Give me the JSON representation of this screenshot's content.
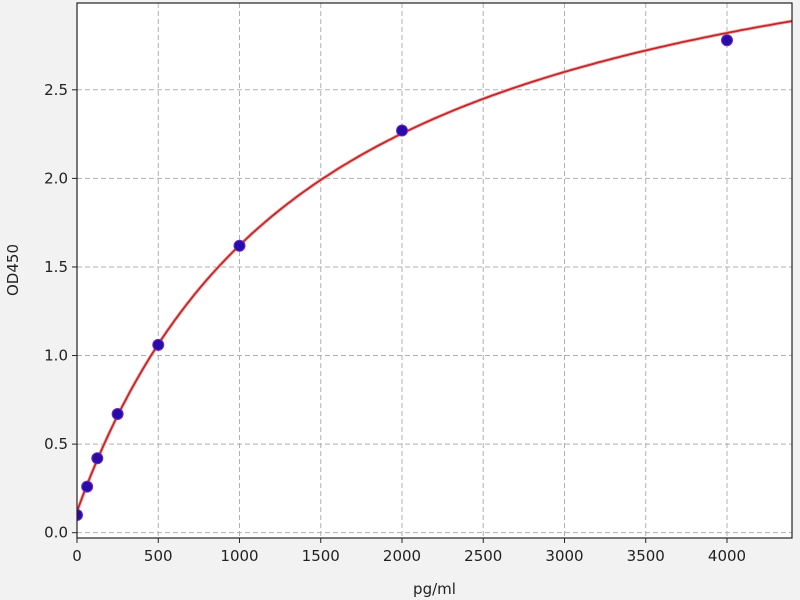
{
  "chart_data": {
    "type": "scatter",
    "title": "",
    "xlabel": "pg/ml",
    "ylabel": "OD450",
    "xlim": [
      0,
      4400
    ],
    "ylim": [
      -0.03,
      2.99
    ],
    "grid": true,
    "x_ticks": [
      0,
      500,
      1000,
      1500,
      2000,
      2500,
      3000,
      3500,
      4000
    ],
    "y_ticks": [
      0.0,
      0.5,
      1.0,
      1.5,
      2.0,
      2.5
    ],
    "x_tick_labels": [
      "0",
      "500",
      "1000",
      "1500",
      "2000",
      "2500",
      "3000",
      "3500",
      "4000"
    ],
    "y_tick_labels": [
      "0.0",
      "0.5",
      "1.0",
      "1.5",
      "2.0",
      "2.5"
    ],
    "points": {
      "x": [
        0,
        62.5,
        125,
        250,
        500,
        1000,
        2000,
        4000
      ],
      "y": [
        0.1,
        0.26,
        0.42,
        0.67,
        1.06,
        1.62,
        2.27,
        2.78
      ]
    },
    "fit_curve": "four-parameter logistic fit through standard points",
    "colors": {
      "points": "#2a0aa8",
      "curve": "#c0282a",
      "grid": "#b0b0b0",
      "background": "#f2f2f2",
      "plot_bg": "#ffffff"
    }
  }
}
